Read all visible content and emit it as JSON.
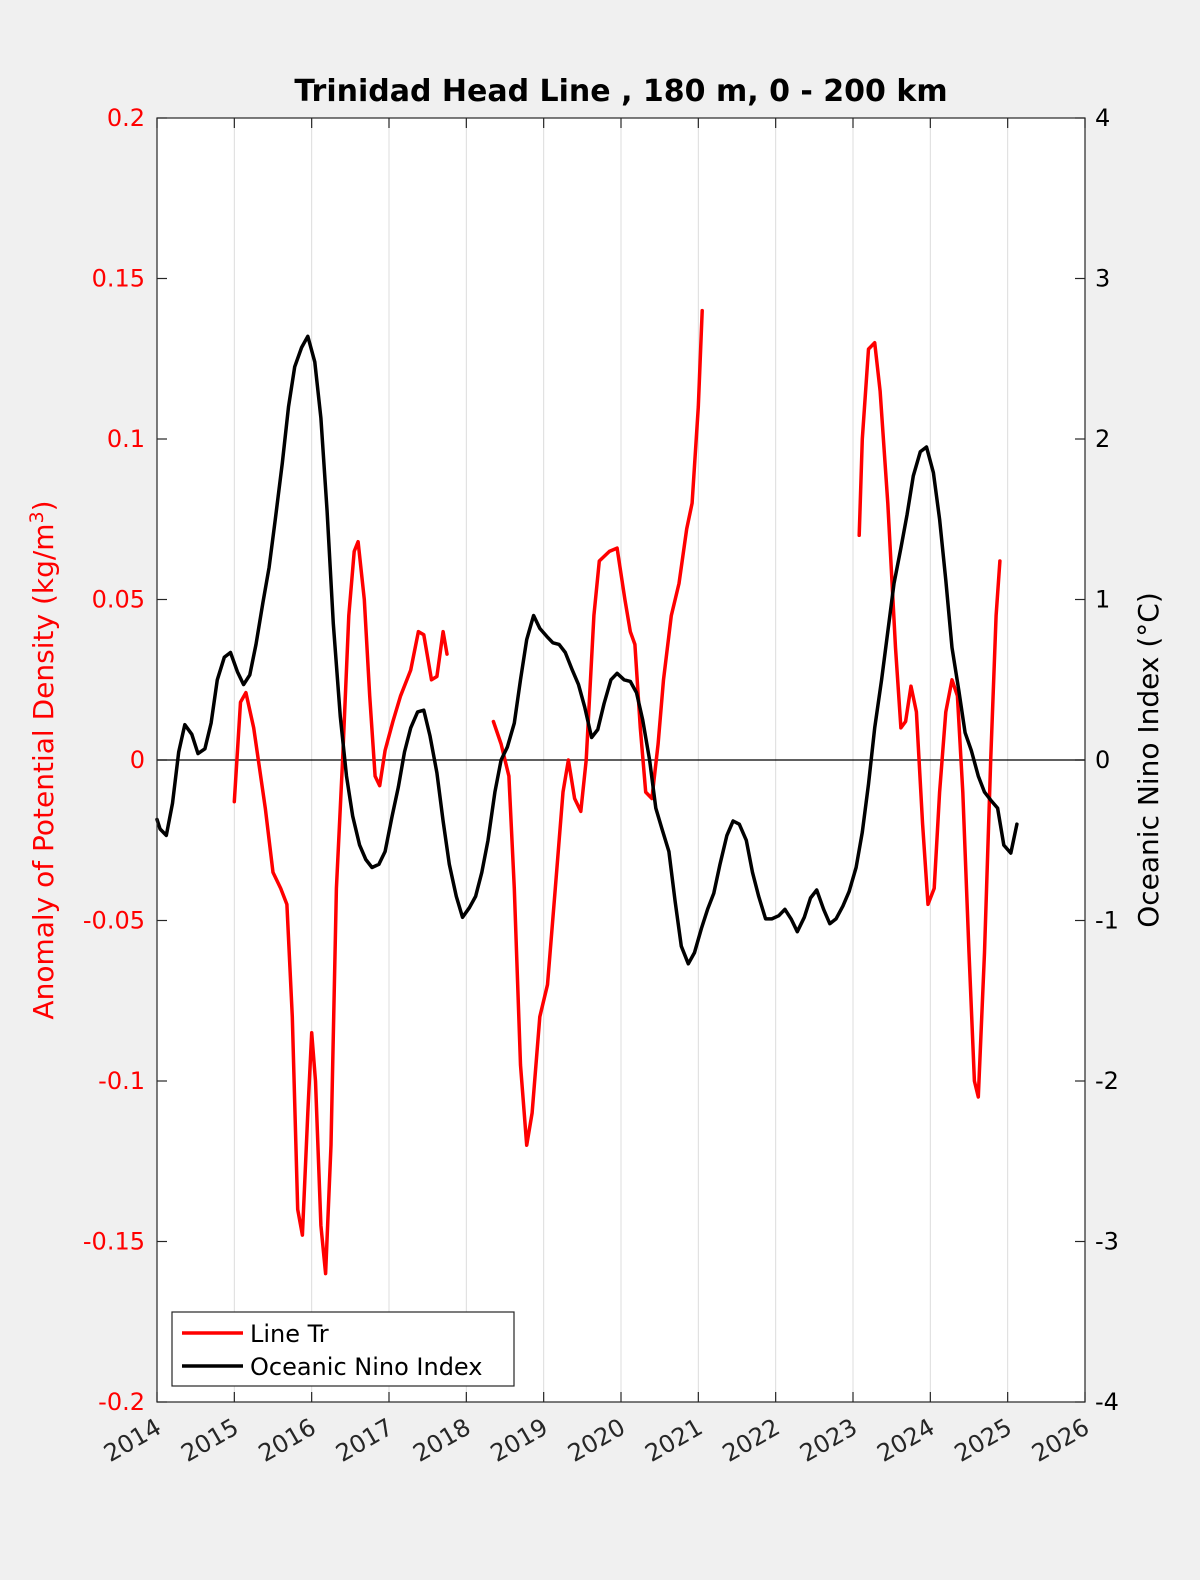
{
  "chart_data": {
    "type": "line",
    "title": "Trinidad Head Line , 180 m, 0 - 200 km",
    "ylabel_left": "Anomaly of Potential Density (kg/m³)",
    "ylabel_left_main": "Anomaly of Potential Density (kg/m",
    "ylabel_left_sup": "3",
    "ylabel_left_close": ")",
    "ylabel_right": "Oceanic Nino Index (°C)",
    "xlim": [
      2014,
      2026
    ],
    "ylim_left": [
      -0.2,
      0.2
    ],
    "ylim_right": [
      -4,
      4
    ],
    "x_ticks": [
      "2014",
      "2015",
      "2016",
      "2017",
      "2018",
      "2019",
      "2020",
      "2021",
      "2022",
      "2023",
      "2024",
      "2025",
      "2026"
    ],
    "y_left_ticks": [
      "0.2",
      "0.15",
      "0.1",
      "0.05",
      "0",
      "-0.05",
      "-0.1",
      "-0.15",
      "-0.2"
    ],
    "y_right_ticks": [
      "4",
      "3",
      "2",
      "1",
      "0",
      "-1",
      "-2",
      "-3",
      "-4"
    ],
    "grid": "vertical lines at x ticks",
    "zero_line": true,
    "legend_position": "bottom-left",
    "colors": {
      "line_tr": "#ff0000",
      "oni": "#000000",
      "grid": "#dcdcdc"
    },
    "series": [
      {
        "name": "Line Tr",
        "axis": "left",
        "segments": [
          [
            [
              2015.0,
              -0.013
            ],
            [
              2015.08,
              0.018
            ],
            [
              2015.15,
              0.021
            ],
            [
              2015.25,
              0.01
            ],
            [
              2015.4,
              -0.015
            ],
            [
              2015.5,
              -0.035
            ],
            [
              2015.6,
              -0.04
            ],
            [
              2015.68,
              -0.045
            ],
            [
              2015.75,
              -0.08
            ],
            [
              2015.82,
              -0.14
            ],
            [
              2015.88,
              -0.148
            ],
            [
              2015.95,
              -0.11
            ],
            [
              2016.0,
              -0.085
            ],
            [
              2016.05,
              -0.1
            ],
            [
              2016.12,
              -0.145
            ],
            [
              2016.18,
              -0.16
            ],
            [
              2016.25,
              -0.12
            ],
            [
              2016.32,
              -0.04
            ],
            [
              2016.4,
              0.0
            ],
            [
              2016.48,
              0.045
            ],
            [
              2016.55,
              0.065
            ],
            [
              2016.6,
              0.068
            ],
            [
              2016.68,
              0.05
            ],
            [
              2016.75,
              0.02
            ],
            [
              2016.82,
              -0.005
            ],
            [
              2016.88,
              -0.008
            ],
            [
              2016.95,
              0.003
            ],
            [
              2017.05,
              0.012
            ],
            [
              2017.15,
              0.02
            ],
            [
              2017.28,
              0.028
            ],
            [
              2017.38,
              0.04
            ],
            [
              2017.45,
              0.039
            ],
            [
              2017.55,
              0.025
            ],
            [
              2017.62,
              0.026
            ],
            [
              2017.7,
              0.04
            ],
            [
              2017.75,
              0.033
            ]
          ],
          [
            [
              2018.35,
              0.012
            ],
            [
              2018.45,
              0.005
            ],
            [
              2018.55,
              -0.005
            ],
            [
              2018.62,
              -0.04
            ],
            [
              2018.7,
              -0.095
            ],
            [
              2018.78,
              -0.12
            ],
            [
              2018.85,
              -0.11
            ],
            [
              2018.95,
              -0.08
            ],
            [
              2019.05,
              -0.07
            ],
            [
              2019.15,
              -0.04
            ],
            [
              2019.25,
              -0.01
            ],
            [
              2019.32,
              0.0
            ],
            [
              2019.4,
              -0.012
            ],
            [
              2019.48,
              -0.016
            ],
            [
              2019.55,
              0.0
            ],
            [
              2019.65,
              0.045
            ],
            [
              2019.72,
              0.062
            ],
            [
              2019.85,
              0.065
            ],
            [
              2019.95,
              0.066
            ],
            [
              2020.05,
              0.05
            ],
            [
              2020.12,
              0.04
            ],
            [
              2020.18,
              0.036
            ],
            [
              2020.25,
              0.01
            ],
            [
              2020.32,
              -0.01
            ],
            [
              2020.4,
              -0.012
            ],
            [
              2020.48,
              0.005
            ],
            [
              2020.55,
              0.025
            ],
            [
              2020.65,
              0.045
            ],
            [
              2020.75,
              0.055
            ],
            [
              2020.85,
              0.072
            ],
            [
              2020.92,
              0.08
            ],
            [
              2021.0,
              0.11
            ],
            [
              2021.05,
              0.14
            ]
          ],
          [
            [
              2023.08,
              0.07
            ],
            [
              2023.12,
              0.1
            ],
            [
              2023.2,
              0.128
            ],
            [
              2023.28,
              0.13
            ],
            [
              2023.35,
              0.115
            ],
            [
              2023.45,
              0.08
            ],
            [
              2023.55,
              0.035
            ],
            [
              2023.62,
              0.01
            ],
            [
              2023.68,
              0.012
            ],
            [
              2023.75,
              0.023
            ],
            [
              2023.82,
              0.015
            ],
            [
              2023.9,
              -0.02
            ],
            [
              2023.97,
              -0.045
            ],
            [
              2024.05,
              -0.04
            ],
            [
              2024.12,
              -0.01
            ],
            [
              2024.2,
              0.015
            ],
            [
              2024.28,
              0.025
            ],
            [
              2024.35,
              0.02
            ],
            [
              2024.42,
              -0.01
            ],
            [
              2024.5,
              -0.06
            ],
            [
              2024.57,
              -0.1
            ],
            [
              2024.62,
              -0.105
            ],
            [
              2024.7,
              -0.06
            ],
            [
              2024.78,
              0.0
            ],
            [
              2024.85,
              0.045
            ],
            [
              2024.9,
              0.062
            ]
          ]
        ]
      },
      {
        "name": "Oceanic Nino Index",
        "axis": "right",
        "segments": [
          [
            [
              2014.0,
              -0.37
            ],
            [
              2014.04,
              -0.43
            ],
            [
              2014.12,
              -0.47
            ],
            [
              2014.2,
              -0.27
            ],
            [
              2014.28,
              0.05
            ],
            [
              2014.36,
              0.22
            ],
            [
              2014.45,
              0.16
            ],
            [
              2014.53,
              0.04
            ],
            [
              2014.62,
              0.07
            ],
            [
              2014.7,
              0.23
            ],
            [
              2014.78,
              0.5
            ],
            [
              2014.87,
              0.64
            ],
            [
              2014.95,
              0.67
            ],
            [
              2015.04,
              0.55
            ],
            [
              2015.12,
              0.47
            ],
            [
              2015.2,
              0.53
            ],
            [
              2015.28,
              0.72
            ],
            [
              2015.37,
              0.98
            ],
            [
              2015.45,
              1.2
            ],
            [
              2015.53,
              1.5
            ],
            [
              2015.62,
              1.85
            ],
            [
              2015.7,
              2.2
            ],
            [
              2015.78,
              2.45
            ],
            [
              2015.87,
              2.57
            ],
            [
              2015.95,
              2.64
            ],
            [
              2016.04,
              2.48
            ],
            [
              2016.12,
              2.13
            ],
            [
              2016.2,
              1.55
            ],
            [
              2016.28,
              0.85
            ],
            [
              2016.37,
              0.27
            ],
            [
              2016.45,
              -0.1
            ],
            [
              2016.53,
              -0.35
            ],
            [
              2016.62,
              -0.53
            ],
            [
              2016.7,
              -0.62
            ],
            [
              2016.78,
              -0.67
            ],
            [
              2016.87,
              -0.65
            ],
            [
              2016.95,
              -0.57
            ],
            [
              2017.04,
              -0.35
            ],
            [
              2017.12,
              -0.17
            ],
            [
              2017.2,
              0.05
            ],
            [
              2017.28,
              0.2
            ],
            [
              2017.37,
              0.3
            ],
            [
              2017.45,
              0.31
            ],
            [
              2017.53,
              0.15
            ],
            [
              2017.62,
              -0.08
            ],
            [
              2017.7,
              -0.38
            ],
            [
              2017.78,
              -0.65
            ],
            [
              2017.87,
              -0.85
            ],
            [
              2017.95,
              -0.98
            ],
            [
              2018.04,
              -0.92
            ],
            [
              2018.12,
              -0.85
            ],
            [
              2018.2,
              -0.7
            ],
            [
              2018.28,
              -0.5
            ],
            [
              2018.37,
              -0.2
            ],
            [
              2018.45,
              0.0
            ],
            [
              2018.53,
              0.08
            ],
            [
              2018.62,
              0.23
            ],
            [
              2018.7,
              0.5
            ],
            [
              2018.78,
              0.75
            ],
            [
              2018.87,
              0.9
            ],
            [
              2018.95,
              0.82
            ],
            [
              2019.04,
              0.77
            ],
            [
              2019.12,
              0.73
            ],
            [
              2019.2,
              0.72
            ],
            [
              2019.28,
              0.67
            ],
            [
              2019.37,
              0.56
            ],
            [
              2019.45,
              0.47
            ],
            [
              2019.53,
              0.33
            ],
            [
              2019.62,
              0.14
            ],
            [
              2019.7,
              0.19
            ],
            [
              2019.78,
              0.35
            ],
            [
              2019.87,
              0.5
            ],
            [
              2019.95,
              0.54
            ],
            [
              2020.04,
              0.5
            ],
            [
              2020.12,
              0.49
            ],
            [
              2020.2,
              0.42
            ],
            [
              2020.28,
              0.25
            ],
            [
              2020.37,
              0.0
            ],
            [
              2020.45,
              -0.3
            ],
            [
              2020.53,
              -0.43
            ],
            [
              2020.62,
              -0.57
            ],
            [
              2020.7,
              -0.88
            ],
            [
              2020.78,
              -1.16
            ],
            [
              2020.87,
              -1.27
            ],
            [
              2020.95,
              -1.2
            ],
            [
              2021.04,
              -1.05
            ],
            [
              2021.12,
              -0.93
            ],
            [
              2021.2,
              -0.83
            ],
            [
              2021.28,
              -0.65
            ],
            [
              2021.37,
              -0.47
            ],
            [
              2021.45,
              -0.38
            ],
            [
              2021.53,
              -0.4
            ],
            [
              2021.62,
              -0.5
            ],
            [
              2021.7,
              -0.7
            ],
            [
              2021.78,
              -0.85
            ],
            [
              2021.87,
              -0.99
            ],
            [
              2021.95,
              -0.99
            ],
            [
              2022.04,
              -0.97
            ],
            [
              2022.12,
              -0.93
            ],
            [
              2022.2,
              -0.99
            ],
            [
              2022.28,
              -1.07
            ],
            [
              2022.37,
              -0.98
            ],
            [
              2022.45,
              -0.86
            ],
            [
              2022.53,
              -0.81
            ],
            [
              2022.62,
              -0.93
            ],
            [
              2022.7,
              -1.02
            ],
            [
              2022.78,
              -0.99
            ],
            [
              2022.87,
              -0.91
            ],
            [
              2022.95,
              -0.82
            ],
            [
              2023.04,
              -0.67
            ],
            [
              2023.12,
              -0.45
            ],
            [
              2023.2,
              -0.15
            ],
            [
              2023.28,
              0.2
            ],
            [
              2023.37,
              0.5
            ],
            [
              2023.45,
              0.8
            ],
            [
              2023.53,
              1.1
            ],
            [
              2023.62,
              1.32
            ],
            [
              2023.7,
              1.53
            ],
            [
              2023.78,
              1.77
            ],
            [
              2023.87,
              1.92
            ],
            [
              2023.95,
              1.95
            ],
            [
              2024.04,
              1.79
            ],
            [
              2024.12,
              1.5
            ],
            [
              2024.2,
              1.12
            ],
            [
              2024.28,
              0.7
            ],
            [
              2024.37,
              0.43
            ],
            [
              2024.45,
              0.17
            ],
            [
              2024.53,
              0.06
            ],
            [
              2024.62,
              -0.1
            ],
            [
              2024.7,
              -0.2
            ],
            [
              2024.78,
              -0.25
            ],
            [
              2024.87,
              -0.3
            ],
            [
              2024.95,
              -0.53
            ],
            [
              2025.04,
              -0.58
            ],
            [
              2025.12,
              -0.4
            ]
          ]
        ]
      }
    ]
  }
}
